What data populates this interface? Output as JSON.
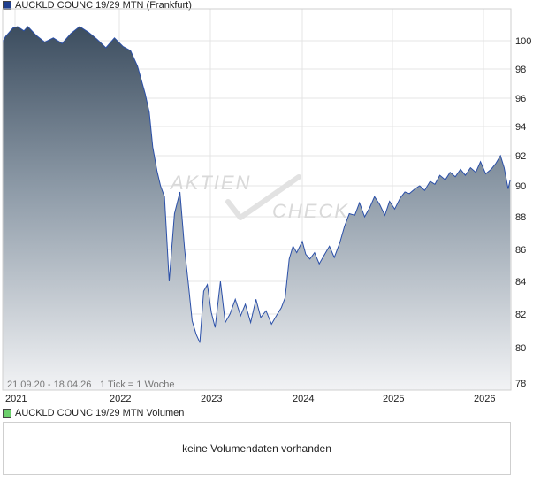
{
  "price_panel": {
    "legend_label": "AUCKLD COUNC 19/29 MTN (Frankfurt)",
    "legend_color": "#1f3f8f",
    "range_label": "21.09.20 - 18.04.26",
    "tick_label": "1 Tick = 1 Woche",
    "watermark": [
      "AKTIEN",
      "CHECK"
    ]
  },
  "volume_panel": {
    "legend_label": "AUCKLD COUNC 19/29 MTN Volumen",
    "legend_color": "#6ccf6c",
    "message": "keine Volumendaten vorhanden"
  },
  "chart_data": {
    "type": "area",
    "title": "AUCKLD COUNC 19/29 MTN (Frankfurt)",
    "x_tick_labels": [
      "2021",
      "2022",
      "2023",
      "2024",
      "2025",
      "2026"
    ],
    "y_tick_labels": [
      "78",
      "80",
      "82",
      "84",
      "86",
      "88",
      "90",
      "92",
      "94",
      "96",
      "98",
      "100"
    ],
    "ylim": [
      78,
      101
    ],
    "xlim": [
      "2020-09-21",
      "2026-04-18"
    ],
    "grid": true,
    "series": [
      {
        "name": "AUCKLD COUNC 19/29 MTN (Frankfurt)",
        "color": "#2a4fa8",
        "x": [
          "2020-09-21",
          "2020-10-15",
          "2020-11-15",
          "2020-12-15",
          "2021-01-10",
          "2021-02-01",
          "2021-02-15",
          "2021-03-15",
          "2021-04-15",
          "2021-05-15",
          "2021-06-15",
          "2021-07-15",
          "2021-08-15",
          "2021-09-15",
          "2021-10-15",
          "2021-11-15",
          "2021-12-15",
          "2022-01-15",
          "2022-02-15",
          "2022-03-15",
          "2022-04-15",
          "2022-05-01",
          "2022-05-15",
          "2022-06-01",
          "2022-06-15",
          "2022-07-01",
          "2022-07-20",
          "2022-08-10",
          "2022-09-01",
          "2022-09-20",
          "2022-10-05",
          "2022-10-20",
          "2022-11-05",
          "2022-11-20",
          "2022-12-05",
          "2022-12-20",
          "2023-01-05",
          "2023-01-20",
          "2023-02-10",
          "2023-03-01",
          "2023-03-20",
          "2023-04-10",
          "2023-05-01",
          "2023-05-20",
          "2023-06-10",
          "2023-07-01",
          "2023-07-20",
          "2023-08-10",
          "2023-09-01",
          "2023-09-20",
          "2023-10-10",
          "2023-10-25",
          "2023-11-10",
          "2023-11-25",
          "2023-12-10",
          "2024-01-01",
          "2024-01-15",
          "2024-02-01",
          "2024-02-20",
          "2024-03-10",
          "2024-04-01",
          "2024-04-20",
          "2024-05-10",
          "2024-06-01",
          "2024-06-20",
          "2024-07-10",
          "2024-08-01",
          "2024-08-20",
          "2024-09-10",
          "2024-10-01",
          "2024-10-20",
          "2024-11-10",
          "2024-12-01",
          "2024-12-20",
          "2025-01-10",
          "2025-02-01",
          "2025-02-20",
          "2025-03-10",
          "2025-04-01",
          "2025-04-20",
          "2025-05-10",
          "2025-06-01",
          "2025-06-20",
          "2025-07-10",
          "2025-08-01",
          "2025-08-20",
          "2025-09-10",
          "2025-10-01",
          "2025-10-20",
          "2025-11-10",
          "2025-12-01",
          "2025-12-20",
          "2026-01-10",
          "2026-02-01",
          "2026-02-20",
          "2026-03-10",
          "2026-03-25",
          "2026-04-10",
          "2026-04-18"
        ],
        "values": [
          99.9,
          100.3,
          100.6,
          100.9,
          101.2,
          100.7,
          101.0,
          100.4,
          99.9,
          100.2,
          99.8,
          100.5,
          101.0,
          100.6,
          100.1,
          99.5,
          100.2,
          99.6,
          99.3,
          98.2,
          96.3,
          95.0,
          92.6,
          91.0,
          90.0,
          89.3,
          84.0,
          88.2,
          89.6,
          86.0,
          83.8,
          81.6,
          80.8,
          80.3,
          83.4,
          83.8,
          82.1,
          81.2,
          84.0,
          81.5,
          82.0,
          82.9,
          81.9,
          82.6,
          81.5,
          82.9,
          81.8,
          82.2,
          81.4,
          81.9,
          82.4,
          83.0,
          85.4,
          86.2,
          85.8,
          86.5,
          85.7,
          85.4,
          85.8,
          85.1,
          85.7,
          86.2,
          85.5,
          86.4,
          87.4,
          88.2,
          88.1,
          88.9,
          88.0,
          88.6,
          89.3,
          88.8,
          88.1,
          89.0,
          88.5,
          89.2,
          89.6,
          89.5,
          89.8,
          90.0,
          89.7,
          90.3,
          90.1,
          90.7,
          90.4,
          90.9,
          90.6,
          91.1,
          90.7,
          91.2,
          90.9,
          91.6,
          90.8,
          91.1,
          91.5,
          92.0,
          91.2,
          89.8,
          90.4
        ]
      }
    ]
  }
}
